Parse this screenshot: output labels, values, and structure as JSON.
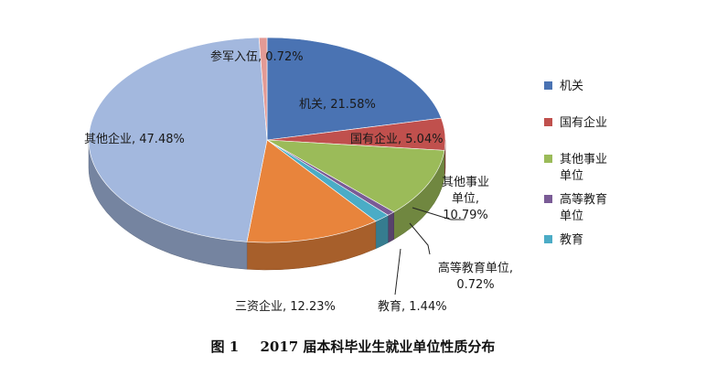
{
  "caption": {
    "figure_number": "图 1",
    "title": "2017 届本科毕业生就业单位性质分布"
  },
  "chart_data": {
    "type": "pie",
    "style": "3d",
    "slices": [
      {
        "name": "机关",
        "value": 21.58,
        "color": "#4a73b3",
        "label": [
          "机关, 21.58%"
        ]
      },
      {
        "name": "国有企业",
        "value": 5.04,
        "color": "#c0504d",
        "label": [
          "国有企业, 5.04%"
        ]
      },
      {
        "name": "其他事业单位",
        "value": 10.79,
        "color": "#9bbb59",
        "label": [
          "其他事业",
          "单位,",
          "10.79%"
        ]
      },
      {
        "name": "高等教育单位",
        "value": 0.72,
        "color": "#7a5b96",
        "label": [
          "高等教育单位,",
          "0.72%"
        ]
      },
      {
        "name": "教育",
        "value": 1.44,
        "color": "#4bacc6",
        "label": [
          "教育, 1.44%"
        ]
      },
      {
        "name": "三资企业",
        "value": 12.23,
        "color": "#e8843c",
        "label": [
          "三资企业, 12.23%"
        ]
      },
      {
        "name": "其他企业",
        "value": 47.48,
        "color": "#a3b8de",
        "label": [
          "其他企业, 47.48%"
        ]
      },
      {
        "name": "参军入伍",
        "value": 0.72,
        "color": "#e39a95",
        "label": [
          "参军入伍, 0.72%"
        ]
      }
    ],
    "legend": {
      "placement": "right",
      "entries": [
        {
          "text": [
            "机关"
          ],
          "color": "#4a73b3"
        },
        {
          "text": [
            "国有企业"
          ],
          "color": "#c0504d"
        },
        {
          "text": [
            "其他事业",
            "单位"
          ],
          "color": "#9bbb59"
        },
        {
          "text": [
            "高等教育",
            "单位"
          ],
          "color": "#7a5b96"
        },
        {
          "text": [
            "教育"
          ],
          "color": "#4bacc6"
        }
      ]
    }
  }
}
